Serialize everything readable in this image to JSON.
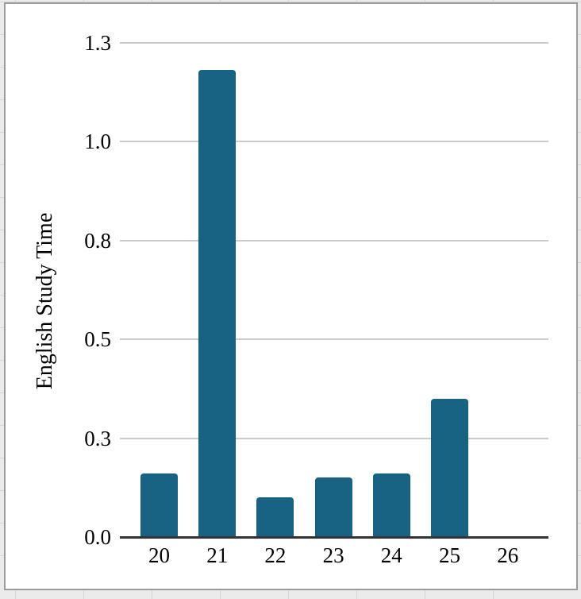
{
  "chart_data": {
    "type": "bar",
    "title": "",
    "categories": [
      "20",
      "21",
      "22",
      "23",
      "24",
      "25",
      "26"
    ],
    "values": [
      0.16,
      1.18,
      0.1,
      0.15,
      0.16,
      0.35,
      0
    ],
    "xlabel": "",
    "ylabel": "English Study Time",
    "yticks": [
      {
        "value": 0.0,
        "label": "0.0"
      },
      {
        "value": 0.25,
        "label": "0.3"
      },
      {
        "value": 0.5,
        "label": "0.5"
      },
      {
        "value": 0.75,
        "label": "0.8"
      },
      {
        "value": 1.0,
        "label": "1.0"
      },
      {
        "value": 1.25,
        "label": "1.3"
      }
    ],
    "ylim": [
      0,
      1.3
    ],
    "grid": true,
    "legend_position": "none",
    "colors": {
      "bar_fill": "#186283",
      "gridline": "#cbcbcb",
      "axis_line": "#333333",
      "frame_border": "#9c9c9c",
      "plot_background": "#ffffff",
      "sheet_background": "#ebebeb",
      "cell_gridline": "#d6d6d6",
      "text": "#000000"
    }
  }
}
